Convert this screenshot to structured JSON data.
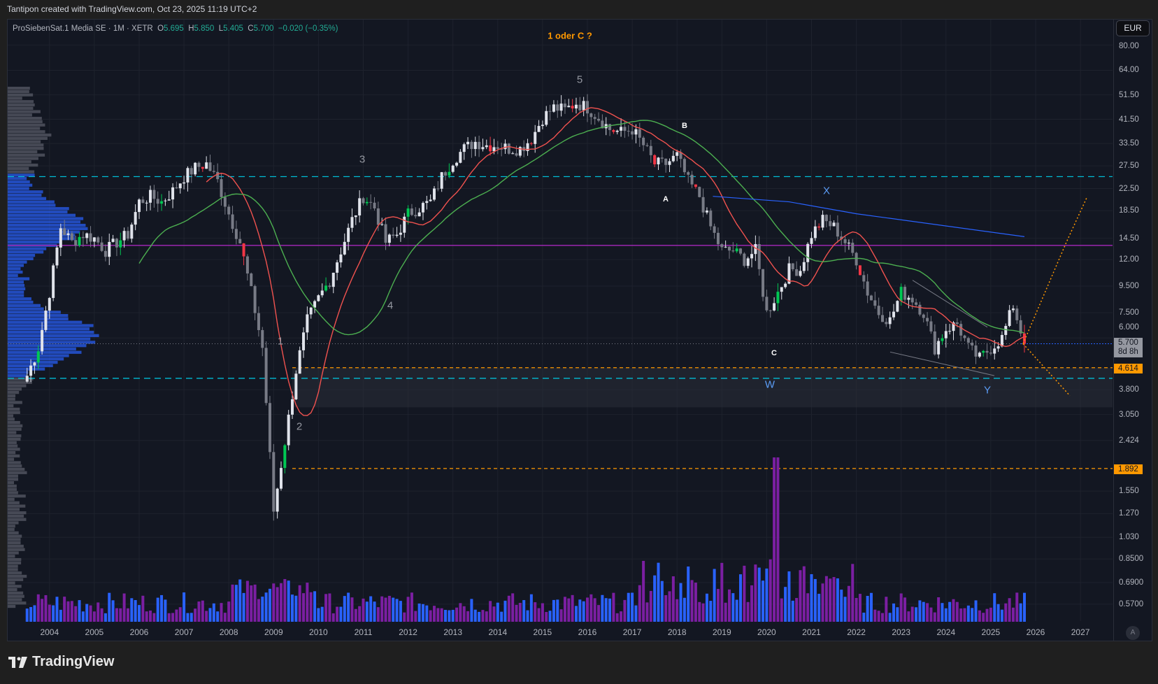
{
  "header": {
    "credit": "Tantipon created with TradingView.com, Oct 23, 2025 11:19 UTC+2"
  },
  "legend": {
    "symbol": "ProSiebenSat.1 Media SE · 1M · XETR",
    "o_label": "O",
    "o": "5.695",
    "h_label": "H",
    "h": "5.850",
    "l_label": "L",
    "l": "5.405",
    "c_label": "C",
    "c": "5.700",
    "change": "−0.020 (−0.35%)"
  },
  "currency": "EUR",
  "price_axis": [
    "80.00",
    "64.00",
    "51.50",
    "41.50",
    "33.50",
    "27.50",
    "22.50",
    "18.50",
    "14.50",
    "12.00",
    "9.500",
    "7.500",
    "6.000",
    "3.800",
    "3.050",
    "2.424",
    "1.550",
    "1.270",
    "1.030",
    "0.8500",
    "0.6900",
    "0.5700"
  ],
  "badges": {
    "last_price": "5.700",
    "countdown": "8d 8h",
    "level_1": "4.614",
    "level_2": "1.892"
  },
  "time_axis": [
    "2004",
    "2005",
    "2006",
    "2007",
    "2008",
    "2009",
    "2010",
    "2011",
    "2012",
    "2013",
    "2014",
    "2015",
    "2016",
    "2017",
    "2018",
    "2019",
    "2020",
    "2021",
    "2022",
    "2023",
    "2024",
    "2025",
    "2026",
    "2027"
  ],
  "annotations": {
    "title": "1 oder C ?",
    "w5": "5",
    "w3": "3",
    "w4": "4",
    "w1": "1",
    "w2": "2",
    "a": "A",
    "b": "B",
    "c": "C",
    "x": "X",
    "w": "W",
    "y": "Y"
  },
  "auto_button": "A",
  "logo": "TradingView",
  "colors": {
    "up": "#00c853",
    "down": "#f23645",
    "neutral": "#d1d4dc",
    "ma_fast": "#f0524f",
    "ma_slow": "#4caf50",
    "ma_long": "#2962ff",
    "support": "#00bcd4",
    "pivot": "#9c27b0",
    "target": "#ff9800"
  },
  "chart_data": {
    "type": "candlestick",
    "scale": "log",
    "ylim": [
      0.5,
      90
    ],
    "xlim": [
      2003.1,
      2027.7
    ],
    "quarterly_close": {
      "t": [
        2003.5,
        2003.75,
        2004,
        2004.25,
        2004.5,
        2004.75,
        2005,
        2005.25,
        2005.5,
        2005.75,
        2006,
        2006.25,
        2006.5,
        2006.75,
        2007,
        2007.25,
        2007.5,
        2007.75,
        2008,
        2008.25,
        2008.5,
        2008.75,
        2009,
        2009.25,
        2009.5,
        2009.75,
        2010,
        2010.25,
        2010.5,
        2010.75,
        2011,
        2011.25,
        2011.5,
        2011.75,
        2012,
        2012.25,
        2012.5,
        2012.75,
        2013,
        2013.25,
        2013.5,
        2013.75,
        2014,
        2014.25,
        2014.5,
        2014.75,
        2015,
        2015.25,
        2015.5,
        2015.75,
        2016,
        2016.25,
        2016.5,
        2016.75,
        2017,
        2017.25,
        2017.5,
        2017.75,
        2018,
        2018.25,
        2018.5,
        2018.75,
        2019,
        2019.25,
        2019.5,
        2019.75,
        2020,
        2020.25,
        2020.5,
        2020.75,
        2021,
        2021.25,
        2021.5,
        2021.75,
        2022,
        2022.25,
        2022.5,
        2022.75,
        2023,
        2023.25,
        2023.5,
        2023.75,
        2024,
        2024.25,
        2024.5,
        2024.75,
        2025,
        2025.25,
        2025.5,
        2025.75
      ],
      "v": [
        4.3,
        5.5,
        9,
        16,
        14,
        15,
        14.5,
        13,
        14,
        15,
        20,
        21,
        20,
        22,
        25,
        27,
        28,
        24,
        18,
        14,
        9,
        5.5,
        1.3,
        2.4,
        4.5,
        7,
        8.5,
        10,
        13,
        17,
        21,
        19,
        14,
        15,
        18,
        19,
        20,
        25,
        29,
        32,
        34,
        33,
        33,
        32,
        32,
        35,
        42,
        46,
        45,
        48,
        46,
        42,
        38,
        37,
        38,
        33,
        28,
        28,
        30,
        24,
        21,
        16,
        13,
        13,
        12,
        13,
        7.5,
        9,
        11,
        11,
        15,
        17,
        16,
        14,
        12,
        9,
        7.5,
        7,
        9,
        8.5,
        7.5,
        5.5,
        6.5,
        6.8,
        5.5,
        5,
        5.5,
        6,
        8,
        5.7
      ]
    },
    "levels": [
      {
        "name": "resistance",
        "value": 25,
        "style": "dashed",
        "color": "#00bcd4"
      },
      {
        "name": "support",
        "value": 4.2,
        "style": "dashed",
        "color": "#00bcd4"
      },
      {
        "name": "pivot",
        "value": 13.6,
        "style": "solid",
        "color": "#9c27b0"
      },
      {
        "name": "level_1",
        "value": 4.614,
        "style": "dashed",
        "color": "#ff9800"
      },
      {
        "name": "level_2",
        "value": 1.892,
        "style": "dashed",
        "color": "#ff9800"
      }
    ]
  }
}
